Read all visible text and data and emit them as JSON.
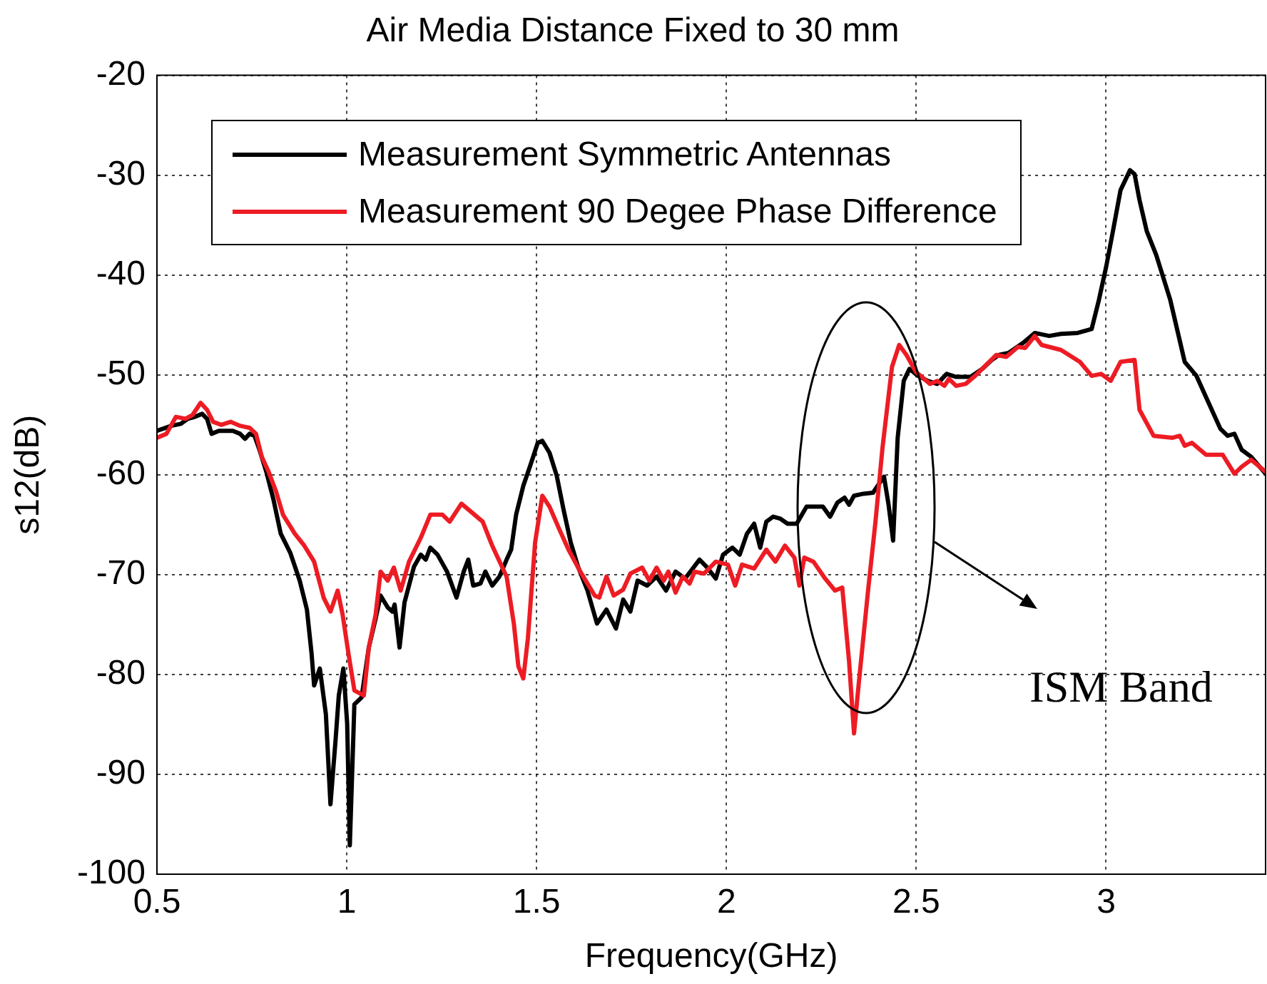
{
  "chart_data": {
    "type": "line",
    "title": "Air Media Distance Fixed to 30 mm",
    "xlabel": "Frequency(GHz)",
    "ylabel": "s12(dB)",
    "xlim": [
      0.5,
      3.42
    ],
    "xticks": [
      0.5,
      1,
      1.5,
      2,
      2.5,
      3
    ],
    "ylim": [
      -100,
      -20
    ],
    "yticks": [
      -100,
      -90,
      -80,
      -70,
      -60,
      -50,
      -40,
      -30,
      -20
    ],
    "grid": true,
    "legend": "top left",
    "annotations": [
      "ISM Band"
    ],
    "series": [
      {
        "name": "Measurement Symmetric Antennas",
        "color": "#000000",
        "x": [
          0.5,
          0.538,
          0.563,
          0.581,
          0.6,
          0.619,
          0.632,
          0.644,
          0.663,
          0.7,
          0.719,
          0.732,
          0.744,
          0.757,
          0.77,
          0.788,
          0.807,
          0.826,
          0.851,
          0.876,
          0.895,
          0.907,
          0.914,
          0.929,
          0.945,
          0.957,
          0.97,
          0.979,
          0.991,
          1.001,
          1.008,
          1.02,
          1.039,
          1.058,
          1.076,
          1.089,
          1.108,
          1.12,
          1.126,
          1.139,
          1.152,
          1.177,
          1.195,
          1.208,
          1.22,
          1.239,
          1.264,
          1.289,
          1.308,
          1.32,
          1.333,
          1.352,
          1.365,
          1.383,
          1.402,
          1.421,
          1.433,
          1.446,
          1.465,
          1.484,
          1.503,
          1.515,
          1.534,
          1.553,
          1.571,
          1.59,
          1.609,
          1.634,
          1.659,
          1.684,
          1.709,
          1.728,
          1.747,
          1.766,
          1.791,
          1.816,
          1.841,
          1.866,
          1.891,
          1.929,
          1.947,
          1.972,
          1.991,
          2.016,
          2.035,
          2.054,
          2.073,
          2.089,
          2.105,
          2.123,
          2.142,
          2.161,
          2.185,
          2.211,
          2.254,
          2.273,
          2.292,
          2.311,
          2.323,
          2.336,
          2.361,
          2.386,
          2.402,
          2.415,
          2.427,
          2.439,
          2.451,
          2.467,
          2.482,
          2.505,
          2.53,
          2.555,
          2.58,
          2.605,
          2.643,
          2.674,
          2.699,
          2.718,
          2.743,
          2.781,
          2.812,
          2.85,
          2.881,
          2.925,
          2.962,
          2.981,
          3.0,
          3.019,
          3.038,
          3.063,
          3.075,
          3.088,
          3.107,
          3.132,
          3.169,
          3.207,
          3.238,
          3.27,
          3.301,
          3.32,
          3.338,
          3.357,
          3.382,
          3.42
        ],
        "values": [
          -55.6,
          -55.1,
          -54.9,
          -54.4,
          -54.2,
          -53.9,
          -54.4,
          -55.9,
          -55.6,
          -55.6,
          -55.9,
          -56.4,
          -55.9,
          -56.1,
          -57.5,
          -59.7,
          -62.5,
          -65.9,
          -67.8,
          -70.6,
          -73.5,
          -77.8,
          -81.1,
          -79.4,
          -84.0,
          -93.0,
          -86.8,
          -82.1,
          -79.4,
          -84.9,
          -97.1,
          -83.0,
          -82.3,
          -77.3,
          -74.4,
          -72.1,
          -73.3,
          -73.7,
          -73.0,
          -77.3,
          -72.8,
          -69.2,
          -68.0,
          -68.5,
          -67.3,
          -68.0,
          -69.7,
          -72.3,
          -69.7,
          -68.5,
          -71.1,
          -70.9,
          -69.7,
          -71.1,
          -70.2,
          -68.5,
          -67.5,
          -64.0,
          -61.1,
          -59.0,
          -56.8,
          -56.6,
          -57.8,
          -60.1,
          -63.5,
          -66.8,
          -69.2,
          -71.6,
          -74.9,
          -73.5,
          -75.4,
          -72.5,
          -73.7,
          -70.6,
          -71.1,
          -70.2,
          -71.6,
          -69.7,
          -70.4,
          -68.5,
          -69.2,
          -70.4,
          -68.0,
          -67.3,
          -68.0,
          -65.9,
          -64.9,
          -67.3,
          -64.7,
          -64.2,
          -64.4,
          -64.9,
          -64.9,
          -63.2,
          -63.2,
          -64.2,
          -62.8,
          -62.3,
          -63.0,
          -62.1,
          -61.9,
          -61.8,
          -60.9,
          -60.2,
          -63.0,
          -66.6,
          -56.3,
          -50.6,
          -49.4,
          -50.1,
          -50.6,
          -50.9,
          -49.9,
          -50.2,
          -50.2,
          -49.4,
          -48.5,
          -48.0,
          -47.8,
          -46.8,
          -45.8,
          -46.1,
          -45.9,
          -45.8,
          -45.4,
          -42.5,
          -39.2,
          -35.4,
          -31.5,
          -29.5,
          -29.9,
          -32.5,
          -35.6,
          -38.0,
          -42.5,
          -48.7,
          -50.1,
          -52.8,
          -55.4,
          -56.1,
          -55.9,
          -57.5,
          -58.2,
          -59.9
        ]
      },
      {
        "name": "Measurement 90 Degee Phase Difference",
        "color": "#ed1c24",
        "x": [
          0.5,
          0.525,
          0.55,
          0.575,
          0.594,
          0.615,
          0.632,
          0.648,
          0.669,
          0.694,
          0.719,
          0.744,
          0.761,
          0.776,
          0.794,
          0.813,
          0.832,
          0.863,
          0.888,
          0.914,
          0.939,
          0.957,
          0.976,
          0.989,
          1.004,
          1.02,
          1.045,
          1.058,
          1.076,
          1.089,
          1.108,
          1.124,
          1.142,
          1.164,
          1.195,
          1.22,
          1.252,
          1.271,
          1.302,
          1.327,
          1.358,
          1.383,
          1.421,
          1.44,
          1.452,
          1.465,
          1.477,
          1.496,
          1.515,
          1.534,
          1.559,
          1.584,
          1.615,
          1.653,
          1.665,
          1.684,
          1.703,
          1.728,
          1.747,
          1.778,
          1.797,
          1.816,
          1.835,
          1.847,
          1.866,
          1.885,
          1.903,
          1.916,
          1.941,
          1.972,
          2.004,
          2.023,
          2.041,
          2.073,
          2.105,
          2.129,
          2.154,
          2.179,
          2.192,
          2.205,
          2.229,
          2.26,
          2.286,
          2.305,
          2.323,
          2.336,
          2.348,
          2.373,
          2.392,
          2.411,
          2.436,
          2.455,
          2.474,
          2.499,
          2.536,
          2.555,
          2.574,
          2.586,
          2.605,
          2.63,
          2.655,
          2.692,
          2.711,
          2.737,
          2.768,
          2.787,
          2.812,
          2.83,
          2.881,
          2.931,
          2.962,
          2.987,
          3.012,
          3.038,
          3.075,
          3.088,
          3.125,
          3.175,
          3.194,
          3.207,
          3.226,
          3.263,
          3.307,
          3.338,
          3.357,
          3.382,
          3.42
        ],
        "values": [
          -56.3,
          -55.9,
          -54.2,
          -54.4,
          -54.0,
          -52.8,
          -53.5,
          -54.7,
          -55.0,
          -54.7,
          -55.1,
          -55.3,
          -55.9,
          -58.2,
          -59.7,
          -61.6,
          -64.0,
          -65.9,
          -67.1,
          -68.7,
          -72.3,
          -73.7,
          -71.6,
          -74.0,
          -77.8,
          -81.6,
          -82.1,
          -77.3,
          -74.0,
          -69.7,
          -70.6,
          -69.3,
          -71.6,
          -68.7,
          -66.3,
          -64.0,
          -64.0,
          -64.7,
          -62.9,
          -63.7,
          -64.7,
          -67.1,
          -70.2,
          -74.9,
          -79.2,
          -80.4,
          -76.4,
          -66.8,
          -62.1,
          -63.2,
          -65.4,
          -67.5,
          -69.7,
          -72.1,
          -72.3,
          -70.2,
          -72.1,
          -71.5,
          -69.9,
          -69.3,
          -70.6,
          -69.3,
          -70.6,
          -69.7,
          -71.8,
          -70.2,
          -70.9,
          -69.7,
          -69.9,
          -68.7,
          -69.0,
          -71.1,
          -69.0,
          -69.4,
          -67.5,
          -68.7,
          -67.1,
          -68.3,
          -71.1,
          -68.3,
          -68.7,
          -70.4,
          -71.6,
          -71.3,
          -78.7,
          -85.9,
          -81.1,
          -71.6,
          -64.9,
          -57.3,
          -49.2,
          -47.0,
          -48.0,
          -49.7,
          -50.9,
          -50.6,
          -51.1,
          -50.4,
          -51.1,
          -50.9,
          -50.1,
          -48.7,
          -48.0,
          -48.2,
          -47.2,
          -47.3,
          -46.1,
          -47.0,
          -47.5,
          -48.7,
          -50.1,
          -49.9,
          -50.6,
          -48.7,
          -48.5,
          -53.5,
          -56.1,
          -56.3,
          -56.1,
          -57.1,
          -56.8,
          -58.0,
          -58.0,
          -59.9,
          -59.2,
          -58.5,
          -59.7
        ]
      }
    ]
  }
}
